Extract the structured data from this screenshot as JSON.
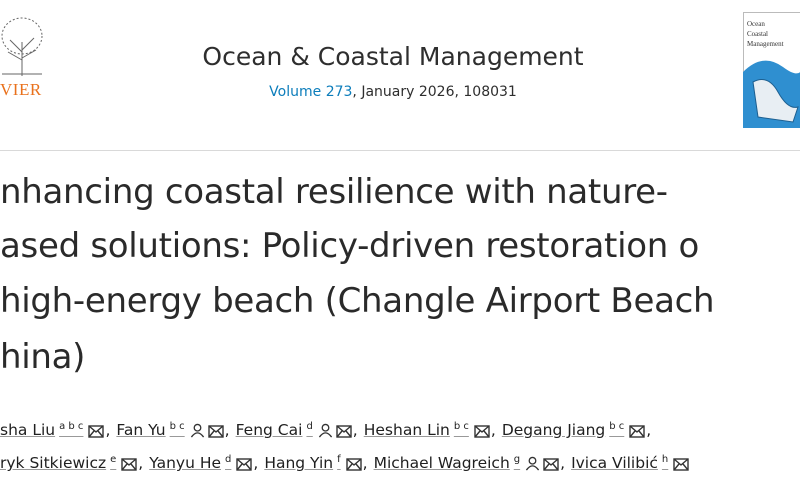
{
  "header": {
    "publisher_logo_text": "VIER",
    "journal_title": "Ocean & Coastal Management",
    "volume_link": "Volume 273",
    "issue_info": ", January 2026, 108031",
    "cover_lines": [
      "Ocean",
      "Coastal",
      "Management"
    ]
  },
  "article": {
    "title_lines": [
      "nhancing coastal resilience with nature-",
      "ased solutions: Policy-driven restoration o",
      "high-energy beach (Changle Airport Beach",
      "hina)"
    ]
  },
  "authors": [
    [
      {
        "name": "sha Liu",
        "sup": "a b c",
        "person": false,
        "separator": ","
      },
      {
        "name": "Fan Yu",
        "sup": "b c",
        "person": true,
        "separator": ","
      },
      {
        "name": "Feng Cai",
        "sup": "d",
        "person": true,
        "separator": ","
      },
      {
        "name": "Heshan Lin",
        "sup": "b c",
        "person": false,
        "separator": ","
      },
      {
        "name": "Degang Jiang",
        "sup": "b c",
        "person": false,
        "separator": ","
      }
    ],
    [
      {
        "name": "ryk Sitkiewicz",
        "sup": "e",
        "person": false,
        "separator": ","
      },
      {
        "name": "Yanyu He",
        "sup": "d",
        "person": false,
        "separator": ","
      },
      {
        "name": "Hang Yin",
        "sup": "f",
        "person": false,
        "separator": ","
      },
      {
        "name": "Michael Wagreich",
        "sup": "g",
        "person": true,
        "separator": ","
      },
      {
        "name": "Ivica Vilibić",
        "sup": "h",
        "person": false,
        "separator": ""
      }
    ]
  ]
}
